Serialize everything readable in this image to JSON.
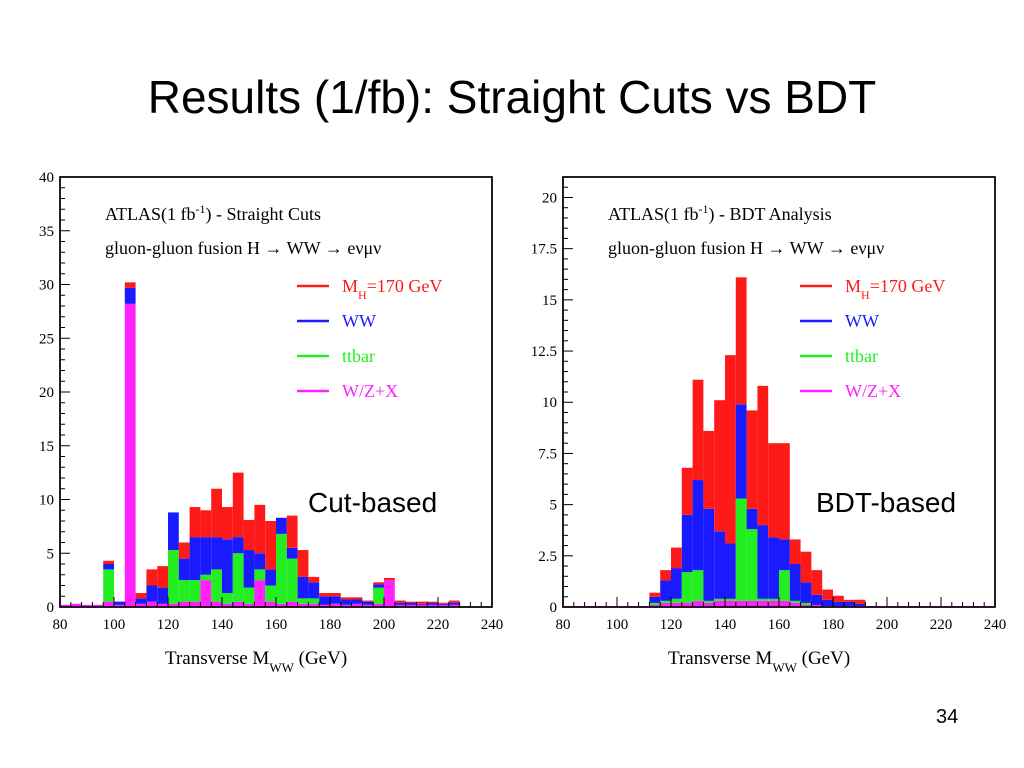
{
  "slide": {
    "title": "Results (1/fb): Straight Cuts vs BDT",
    "page_number": "34"
  },
  "captions": {
    "left": "Cut-based",
    "right": "BDT-based"
  },
  "colors": {
    "signal": "#ff1a1a",
    "ww": "#1a1aff",
    "ttbar": "#22ee22",
    "wzx": "#ff22ff"
  },
  "chart_data": [
    {
      "type": "bar",
      "stacked": true,
      "title_lines": [
        "ATLAS(1 fb",
        "-1",
        ") - Straight Cuts"
      ],
      "subtitle": "gluon-gluon fusion H → WW → eνμν",
      "xlabel_main": "Transverse M",
      "xlabel_sub": "WW",
      "xlabel_unit": " (GeV)",
      "xlim": [
        80,
        240
      ],
      "ylim": [
        0,
        40
      ],
      "bin_width": 4,
      "x_ticks": [
        80,
        100,
        120,
        140,
        160,
        180,
        200,
        220,
        240
      ],
      "y_ticks": [
        "0",
        "5",
        "10",
        "15",
        "20",
        "25",
        "30",
        "35",
        "40"
      ],
      "y_tick_values": [
        0,
        5,
        10,
        15,
        20,
        25,
        30,
        35,
        40
      ],
      "legend_placement": "top-right",
      "legend": [
        {
          "key": "signal",
          "label_main": "M",
          "label_sub": "H",
          "label_rest": "=170 GeV"
        },
        {
          "key": "ww",
          "label_main": "WW",
          "label_sub": "",
          "label_rest": ""
        },
        {
          "key": "ttbar",
          "label_main": "ttbar",
          "label_sub": "",
          "label_rest": ""
        },
        {
          "key": "wzx",
          "label_main": "W/Z+X",
          "label_sub": "",
          "label_rest": ""
        }
      ],
      "x_bins": [
        80,
        84,
        88,
        92,
        96,
        100,
        104,
        108,
        112,
        116,
        120,
        124,
        128,
        132,
        136,
        140,
        144,
        148,
        152,
        156,
        160,
        164,
        168,
        172,
        176,
        180,
        184,
        188,
        192,
        196,
        200,
        204,
        208,
        212,
        216,
        220,
        224,
        228,
        232,
        236
      ],
      "series": [
        {
          "key": "wzx",
          "values": [
            0.2,
            0.3,
            0.2,
            0.2,
            0.5,
            0.2,
            28.2,
            0.3,
            0.5,
            0.3,
            0.3,
            0.5,
            0.5,
            2.5,
            0.5,
            0.3,
            0.5,
            0.3,
            2.5,
            0.5,
            0.3,
            0.5,
            0.3,
            0.3,
            0.2,
            0.3,
            0.2,
            0.3,
            0.2,
            0.3,
            2.5,
            0.2,
            0.2,
            0.2,
            0.2,
            0.2,
            0.2,
            0,
            0,
            0
          ]
        },
        {
          "key": "ttbar",
          "values": [
            0,
            0,
            0,
            0,
            3.0,
            0,
            0,
            0,
            0,
            0,
            5.0,
            2.0,
            2.0,
            0.5,
            3.0,
            1.0,
            4.5,
            1.5,
            1.0,
            1.5,
            6.5,
            4.0,
            0.5,
            0.5,
            0,
            0,
            0,
            0,
            0,
            1.5,
            0,
            0,
            0,
            0,
            0,
            0,
            0,
            0,
            0,
            0
          ]
        },
        {
          "key": "ww",
          "values": [
            0,
            0,
            0,
            0,
            0.5,
            0.3,
            1.5,
            0.5,
            1.5,
            1.5,
            3.5,
            2.0,
            4.0,
            3.5,
            3.0,
            5.0,
            1.5,
            3.5,
            1.5,
            1.5,
            1.5,
            1.0,
            2.0,
            1.5,
            0.8,
            0.7,
            0.5,
            0.4,
            0.3,
            0.3,
            0,
            0.2,
            0.2,
            0.1,
            0.2,
            0.1,
            0.2,
            0,
            0,
            0
          ]
        },
        {
          "key": "signal",
          "values": [
            0,
            0,
            0,
            0,
            0.3,
            0,
            0.5,
            0.5,
            1.5,
            2.0,
            0,
            1.5,
            2.8,
            2.5,
            4.5,
            3.0,
            6.0,
            2.8,
            4.5,
            4.5,
            0,
            3.0,
            2.5,
            0.5,
            0.3,
            0.3,
            0.2,
            0.2,
            0.1,
            0.2,
            0.2,
            0.2,
            0.1,
            0.2,
            0.1,
            0.1,
            0.2,
            0,
            0,
            0
          ]
        }
      ]
    },
    {
      "type": "bar",
      "stacked": true,
      "title_lines": [
        "ATLAS(1 fb",
        "-1",
        ") - BDT Analysis"
      ],
      "subtitle": "gluon-gluon fusion H → WW → eνμν",
      "xlabel_main": "Transverse M",
      "xlabel_sub": "WW",
      "xlabel_unit": " (GeV)",
      "xlim": [
        80,
        240
      ],
      "ylim": [
        0,
        21
      ],
      "bin_width": 4,
      "x_ticks": [
        80,
        100,
        120,
        140,
        160,
        180,
        200,
        220,
        240
      ],
      "y_ticks": [
        "0",
        "2.5",
        "5",
        "7.5",
        "10",
        "12.5",
        "15",
        "17.5",
        "20"
      ],
      "y_tick_values": [
        0,
        2.5,
        5,
        7.5,
        10,
        12.5,
        15,
        17.5,
        20
      ],
      "legend_placement": "top-right",
      "legend": [
        {
          "key": "signal",
          "label_main": "M",
          "label_sub": "H",
          "label_rest": "=170 GeV"
        },
        {
          "key": "ww",
          "label_main": "WW",
          "label_sub": "",
          "label_rest": ""
        },
        {
          "key": "ttbar",
          "label_main": "ttbar",
          "label_sub": "",
          "label_rest": ""
        },
        {
          "key": "wzx",
          "label_main": "W/Z+X",
          "label_sub": "",
          "label_rest": ""
        }
      ],
      "x_bins": [
        80,
        84,
        88,
        92,
        96,
        100,
        104,
        108,
        112,
        116,
        120,
        124,
        128,
        132,
        136,
        140,
        144,
        148,
        152,
        156,
        160,
        164,
        168,
        172,
        176,
        180,
        184,
        188,
        192,
        196,
        200,
        204,
        208,
        212,
        216,
        220,
        224,
        228,
        232,
        236
      ],
      "series": [
        {
          "key": "wzx",
          "values": [
            0.05,
            0.05,
            0.05,
            0.05,
            0.05,
            0.05,
            0.05,
            0.05,
            0.1,
            0.2,
            0.2,
            0.2,
            0.3,
            0.2,
            0.3,
            0.3,
            0.3,
            0.3,
            0.3,
            0.3,
            0.3,
            0.2,
            0.1,
            0.1,
            0.05,
            0.05,
            0.05,
            0.05,
            0.05,
            0.05,
            0.05,
            0.05,
            0.05,
            0.05,
            0.05,
            0.05,
            0.05,
            0.05,
            0.05,
            0.05
          ]
        },
        {
          "key": "ttbar",
          "values": [
            0,
            0,
            0,
            0,
            0,
            0,
            0,
            0,
            0.1,
            0.1,
            0.2,
            1.5,
            1.5,
            0.1,
            0.1,
            0.1,
            5.0,
            3.5,
            0.1,
            0.1,
            1.5,
            0.1,
            0.1,
            0,
            0,
            0,
            0,
            0,
            0,
            0,
            0,
            0,
            0,
            0,
            0,
            0,
            0,
            0,
            0,
            0
          ]
        },
        {
          "key": "ww",
          "values": [
            0,
            0,
            0,
            0,
            0,
            0,
            0,
            0,
            0.3,
            1.0,
            1.5,
            2.8,
            4.4,
            4.5,
            3.3,
            2.7,
            4.6,
            1.0,
            3.6,
            3.0,
            1.5,
            1.8,
            1.0,
            0.5,
            0.3,
            0.2,
            0.2,
            0.1,
            0,
            0,
            0,
            0,
            0,
            0,
            0,
            0,
            0,
            0,
            0,
            0
          ]
        },
        {
          "key": "signal",
          "values": [
            0,
            0,
            0,
            0,
            0,
            0,
            0,
            0,
            0.2,
            0.5,
            1.0,
            2.3,
            4.9,
            3.8,
            6.4,
            9.2,
            6.2,
            4.8,
            6.8,
            4.6,
            4.7,
            1.2,
            1.5,
            1.2,
            0.5,
            0.3,
            0.1,
            0.2,
            0,
            0,
            0,
            0,
            0,
            0,
            0,
            0,
            0,
            0,
            0,
            0
          ]
        }
      ]
    }
  ]
}
